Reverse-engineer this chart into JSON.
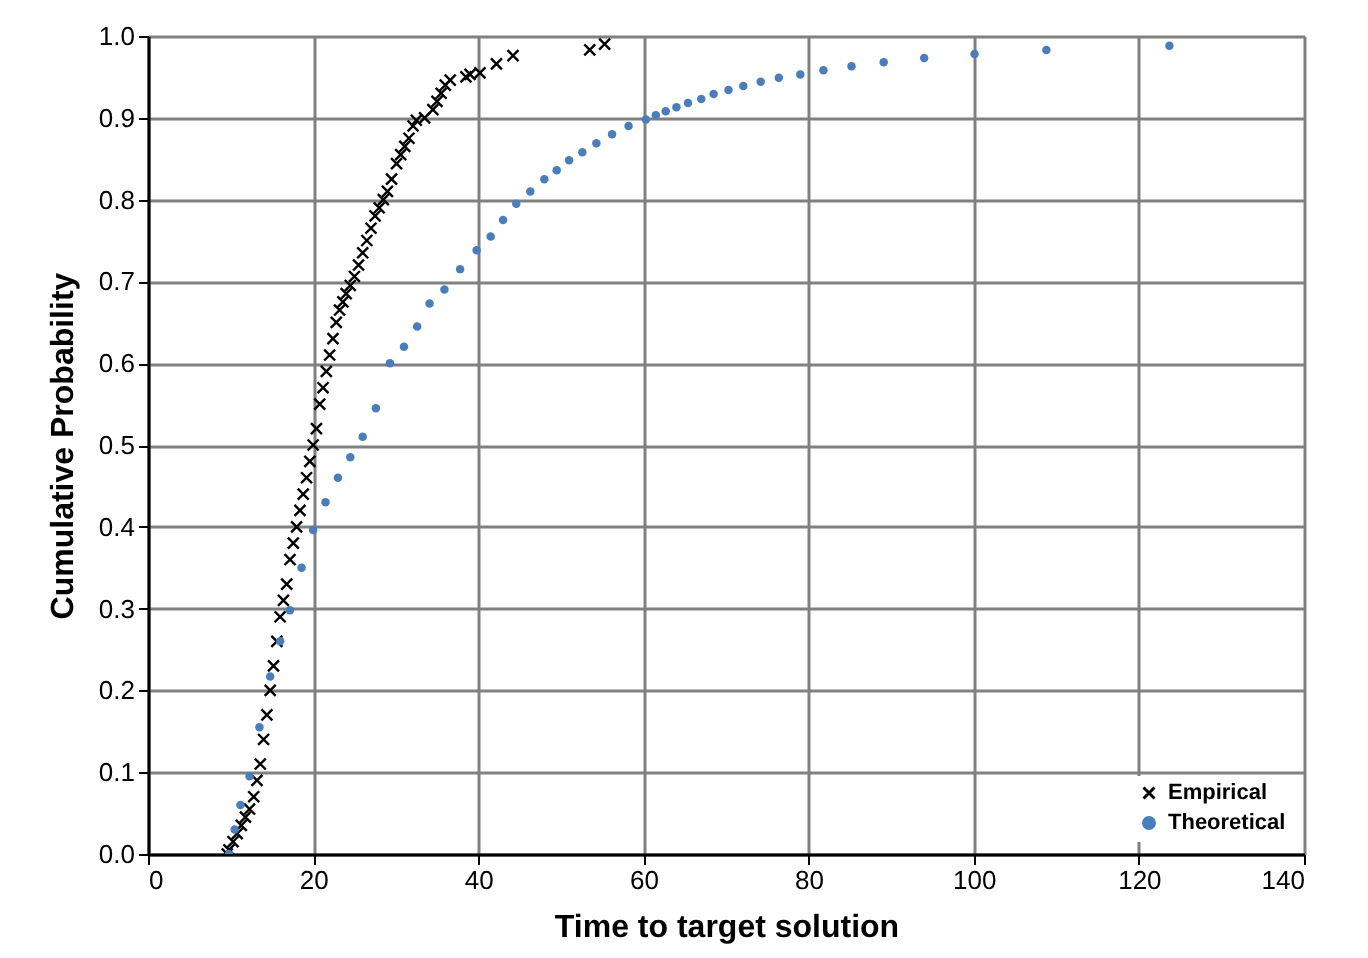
{
  "chart_data": {
    "type": "scatter",
    "xlabel": "Time to target solution",
    "ylabel": "Cumulative Probability",
    "xlim": [
      0,
      140
    ],
    "xticks": [
      0,
      20,
      40,
      60,
      80,
      100,
      120,
      140
    ],
    "ylim": [
      0,
      1
    ],
    "yticks": [
      {
        "value": 0,
        "label": "0.0"
      },
      {
        "value": 0.1,
        "label": "0.1"
      },
      {
        "value": 0.2,
        "label": "0.2"
      },
      {
        "value": 0.3,
        "label": "0.3"
      },
      {
        "value": 0.4,
        "label": "0.4"
      },
      {
        "value": 0.5,
        "label": "0.5"
      },
      {
        "value": 0.6,
        "label": "0.6"
      },
      {
        "value": 0.7,
        "label": "0.7"
      },
      {
        "value": 0.8,
        "label": "0.8"
      },
      {
        "value": 0.9,
        "label": "0.9"
      },
      {
        "value": 1,
        "label": "1.0"
      }
    ],
    "grid": true,
    "legend": "bottom right",
    "series": [
      {
        "name": "Empirical",
        "color": "#000000",
        "marker": "cross",
        "x": [
          9.6,
          9.8,
          10.3,
          10.8,
          11.3,
          11.8,
          12.3,
          12.8,
          13.2,
          13.6,
          14.0,
          14.4,
          14.8,
          15.2,
          15.6,
          16.0,
          16.4,
          16.8,
          17.2,
          17.6,
          18.0,
          18.4,
          18.8,
          19.2,
          19.6,
          20.0,
          20.4,
          20.8,
          21.2,
          21.6,
          22.0,
          22.4,
          22.8,
          23.2,
          23.6,
          24.0,
          24.5,
          25.0,
          25.5,
          26.0,
          26.5,
          27.0,
          27.5,
          28.0,
          28.5,
          29.0,
          29.5,
          30.1,
          30.6,
          31.1,
          31.6,
          32.1,
          32.5,
          33.5,
          34.5,
          35.0,
          35.5,
          36.0,
          36.6,
          38.5,
          39.0,
          40.2,
          42.2,
          44.2,
          53.5,
          55.3
        ],
        "values": [
          0.0,
          0.005,
          0.015,
          0.025,
          0.035,
          0.045,
          0.055,
          0.07,
          0.09,
          0.11,
          0.14,
          0.17,
          0.2,
          0.23,
          0.26,
          0.29,
          0.31,
          0.33,
          0.36,
          0.38,
          0.4,
          0.42,
          0.44,
          0.46,
          0.48,
          0.5,
          0.52,
          0.55,
          0.57,
          0.59,
          0.61,
          0.63,
          0.65,
          0.665,
          0.675,
          0.685,
          0.695,
          0.706,
          0.72,
          0.735,
          0.75,
          0.765,
          0.78,
          0.79,
          0.8,
          0.81,
          0.825,
          0.844,
          0.855,
          0.865,
          0.875,
          0.89,
          0.897,
          0.9,
          0.91,
          0.92,
          0.93,
          0.94,
          0.946,
          0.95,
          0.953,
          0.955,
          0.966,
          0.976,
          0.983,
          0.99
        ]
      },
      {
        "name": "Theoretical",
        "color": "#4a7ebb",
        "marker": "circle",
        "x": [
          9.8,
          10.5,
          11.2,
          12.3,
          13.5,
          14.8,
          16.0,
          17.2,
          18.6,
          20.0,
          21.5,
          23.0,
          24.5,
          26.0,
          27.6,
          29.3,
          31.0,
          32.6,
          34.1,
          35.9,
          37.8,
          39.8,
          41.5,
          43.0,
          44.6,
          46.3,
          48.0,
          49.5,
          51.0,
          52.6,
          54.3,
          56.2,
          58.2,
          60.3,
          61.5,
          62.7,
          64.0,
          65.4,
          67.0,
          68.5,
          70.3,
          72.1,
          74.2,
          76.4,
          79.0,
          81.8,
          85.2,
          89.1,
          94.0,
          100.1,
          108.8,
          123.7
        ],
        "values": [
          0.0,
          0.03,
          0.06,
          0.095,
          0.155,
          0.217,
          0.26,
          0.298,
          0.35,
          0.396,
          0.43,
          0.46,
          0.485,
          0.51,
          0.545,
          0.6,
          0.62,
          0.645,
          0.673,
          0.69,
          0.715,
          0.738,
          0.755,
          0.775,
          0.795,
          0.81,
          0.825,
          0.836,
          0.848,
          0.858,
          0.869,
          0.88,
          0.89,
          0.898,
          0.903,
          0.908,
          0.913,
          0.918,
          0.923,
          0.929,
          0.934,
          0.939,
          0.944,
          0.949,
          0.953,
          0.958,
          0.963,
          0.968,
          0.973,
          0.978,
          0.983,
          0.988
        ]
      }
    ]
  }
}
